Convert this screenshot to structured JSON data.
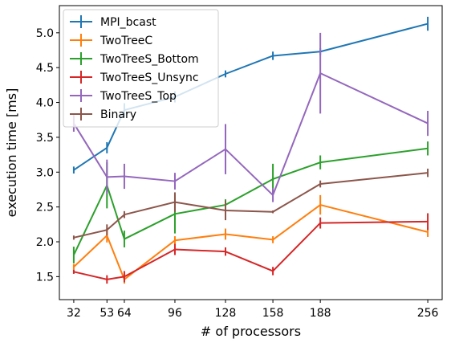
{
  "chart_data": {
    "type": "line",
    "xlabel": "# of processors",
    "ylabel": "execution time [ms]",
    "x": [
      32,
      53,
      64,
      96,
      128,
      158,
      188,
      256
    ],
    "xticks": [
      "32",
      "53",
      "64",
      "96",
      "128",
      "158",
      "188",
      "256"
    ],
    "yticks": [
      "1.5",
      "2.0",
      "2.5",
      "3.0",
      "3.5",
      "4.0",
      "4.5",
      "5.0"
    ],
    "xlim": [
      22.9,
      265.1
    ],
    "ylim": [
      1.17,
      5.39
    ],
    "grid": false,
    "legend_position": "top-left",
    "series": [
      {
        "name": "MPI_bcast",
        "color": "#1f77b4",
        "values": [
          3.03,
          3.35,
          3.89,
          4.08,
          4.41,
          4.67,
          4.73,
          5.13
        ],
        "errors": [
          0.05,
          0.08,
          0.1,
          0.08,
          0.05,
          0.06,
          0.05,
          0.1
        ]
      },
      {
        "name": "TwoTreeC",
        "color": "#ff7f0e",
        "values": [
          1.64,
          2.09,
          1.46,
          2.02,
          2.11,
          2.03,
          2.53,
          2.14
        ],
        "errors": [
          0.04,
          0.1,
          0.06,
          0.06,
          0.08,
          0.05,
          0.14,
          0.07
        ]
      },
      {
        "name": "TwoTreeS_Bottom",
        "color": "#2ca02c",
        "values": [
          1.81,
          2.81,
          2.04,
          2.4,
          2.53,
          2.9,
          3.14,
          3.34
        ],
        "errors": [
          0.12,
          0.33,
          0.12,
          0.28,
          0.08,
          0.22,
          0.1,
          0.1
        ]
      },
      {
        "name": "TwoTreeS_Unsync",
        "color": "#d62728",
        "values": [
          1.57,
          1.46,
          1.5,
          1.89,
          1.86,
          1.58,
          2.27,
          2.29
        ],
        "errors": [
          0.03,
          0.06,
          0.08,
          0.08,
          0.06,
          0.06,
          0.08,
          0.12
        ]
      },
      {
        "name": "TwoTreeS_Top",
        "color": "#9467bd",
        "values": [
          3.7,
          2.93,
          2.94,
          2.87,
          3.33,
          2.67,
          4.42,
          3.7
        ],
        "errors": [
          0.12,
          0.25,
          0.18,
          0.12,
          0.36,
          0.1,
          0.58,
          0.18
        ]
      },
      {
        "name": "Binary",
        "color": "#8c564b",
        "values": [
          2.06,
          2.17,
          2.39,
          2.57,
          2.45,
          2.43,
          2.83,
          2.99
        ],
        "errors": [
          0.03,
          0.08,
          0.05,
          0.14,
          0.14,
          0.02,
          0.05,
          0.06
        ]
      }
    ]
  }
}
